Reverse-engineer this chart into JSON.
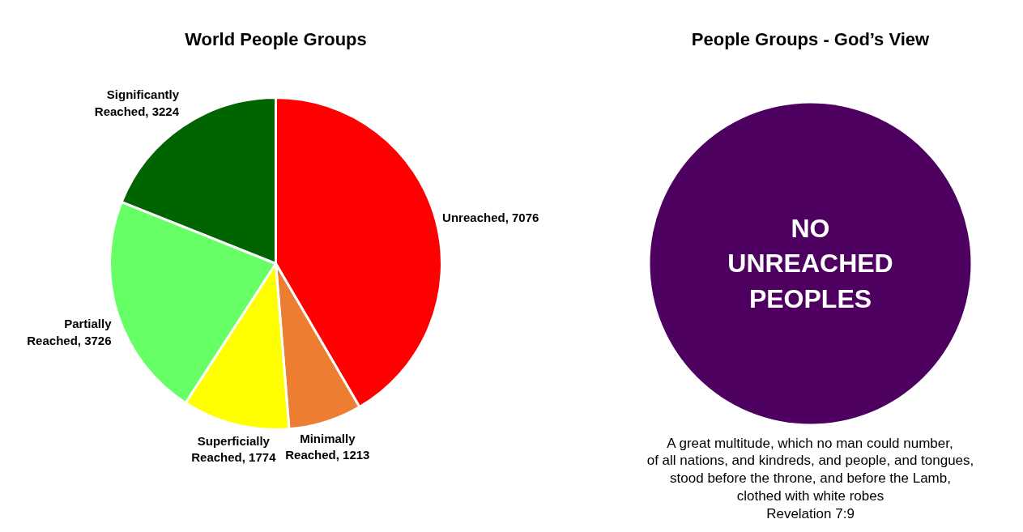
{
  "chart_data": [
    {
      "type": "pie",
      "title": "World People Groups",
      "categories": [
        "Unreached, 7076",
        "Minimally Reached, 1213",
        "Superficially Reached, 1774",
        "Partially Reached, 3726",
        "Significantly Reached, 3224"
      ],
      "values": [
        7076,
        1213,
        1774,
        3726,
        3224
      ],
      "colors": [
        "#ff0000",
        "#ed7d31",
        "#ffff00",
        "#66ff66",
        "#006400"
      ]
    },
    {
      "type": "pie",
      "title": "People Groups - God’s View",
      "categories": [
        null
      ],
      "values": [
        100
      ],
      "colors": [
        "#4d005f"
      ],
      "annotations": [
        "NO\nUNREACHED\nPEOPLES",
        "A great multitude, which no man could number,\nof all nations, and kindreds, and people, and tongues,\nstood before the throne, and before the Lamb,\nclothed with white robes\nRevelation 7:9"
      ]
    }
  ]
}
